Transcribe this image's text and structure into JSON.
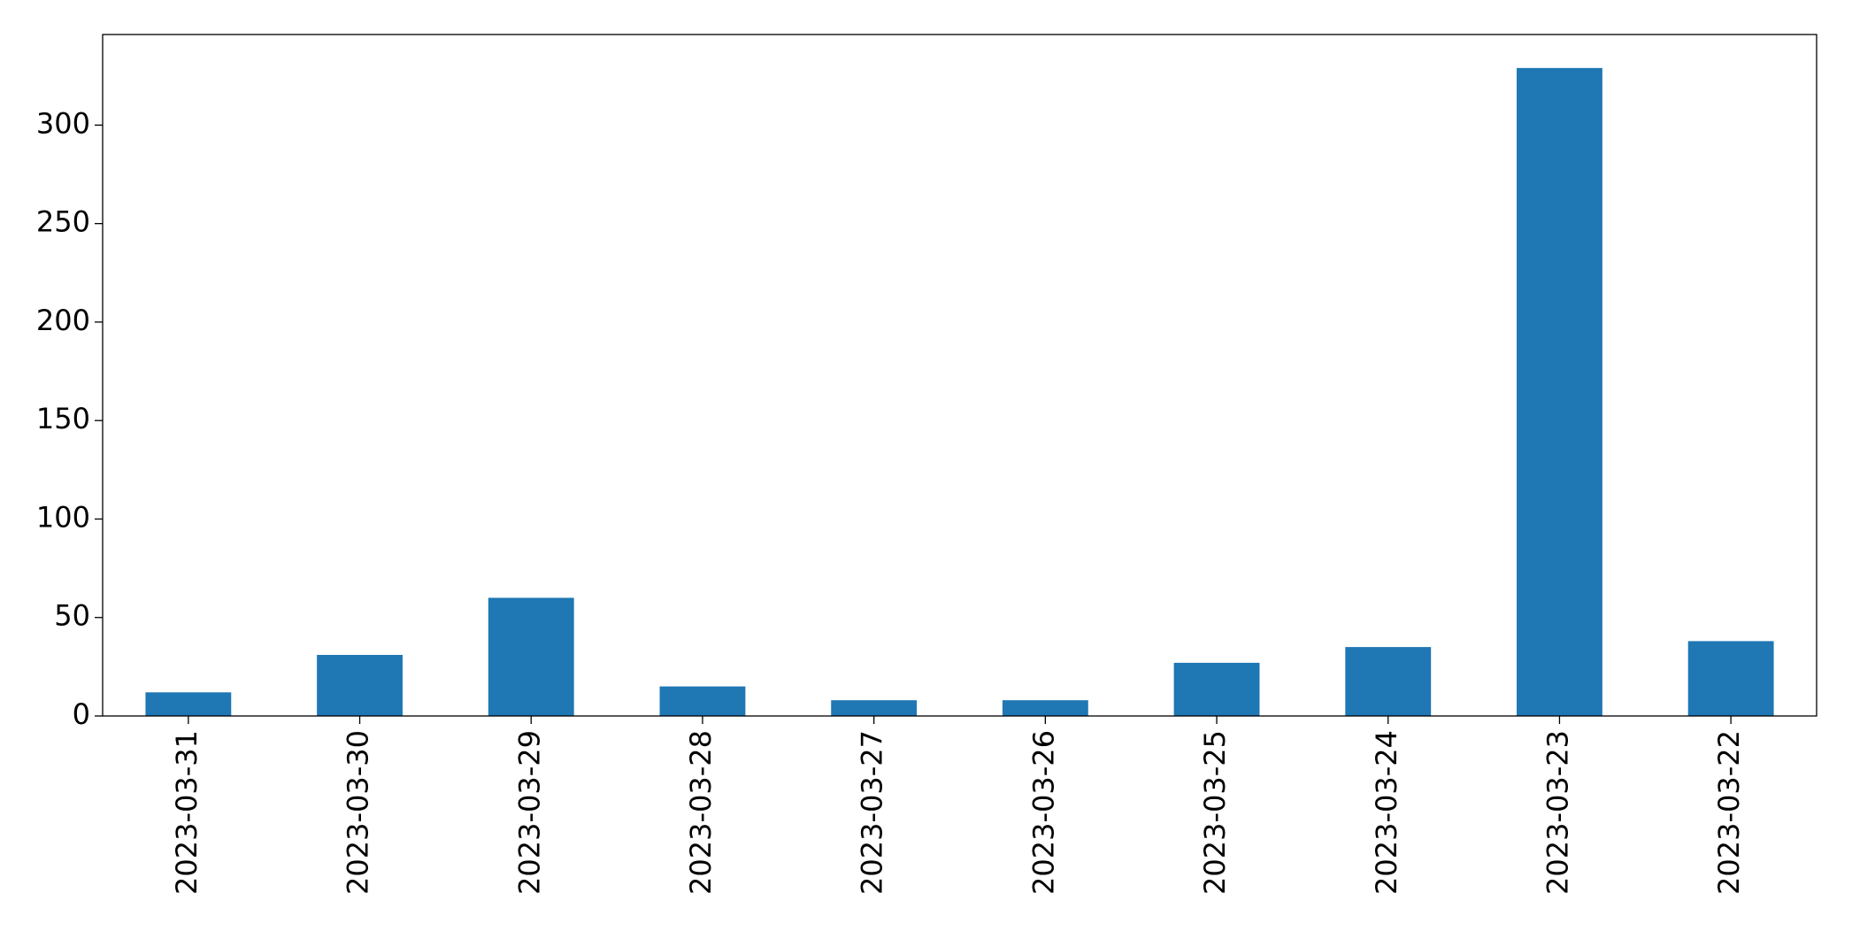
{
  "chart_data": {
    "type": "bar",
    "categories": [
      "2023-03-31",
      "2023-03-30",
      "2023-03-29",
      "2023-03-28",
      "2023-03-27",
      "2023-03-26",
      "2023-03-25",
      "2023-03-24",
      "2023-03-23",
      "2023-03-22"
    ],
    "values": [
      12,
      31,
      60,
      15,
      8,
      8,
      27,
      35,
      329,
      38
    ],
    "color": "#1f77b4",
    "ylim": [
      0,
      346
    ],
    "yticks": [
      0,
      50,
      100,
      150,
      200,
      250,
      300
    ],
    "grid": false
  }
}
